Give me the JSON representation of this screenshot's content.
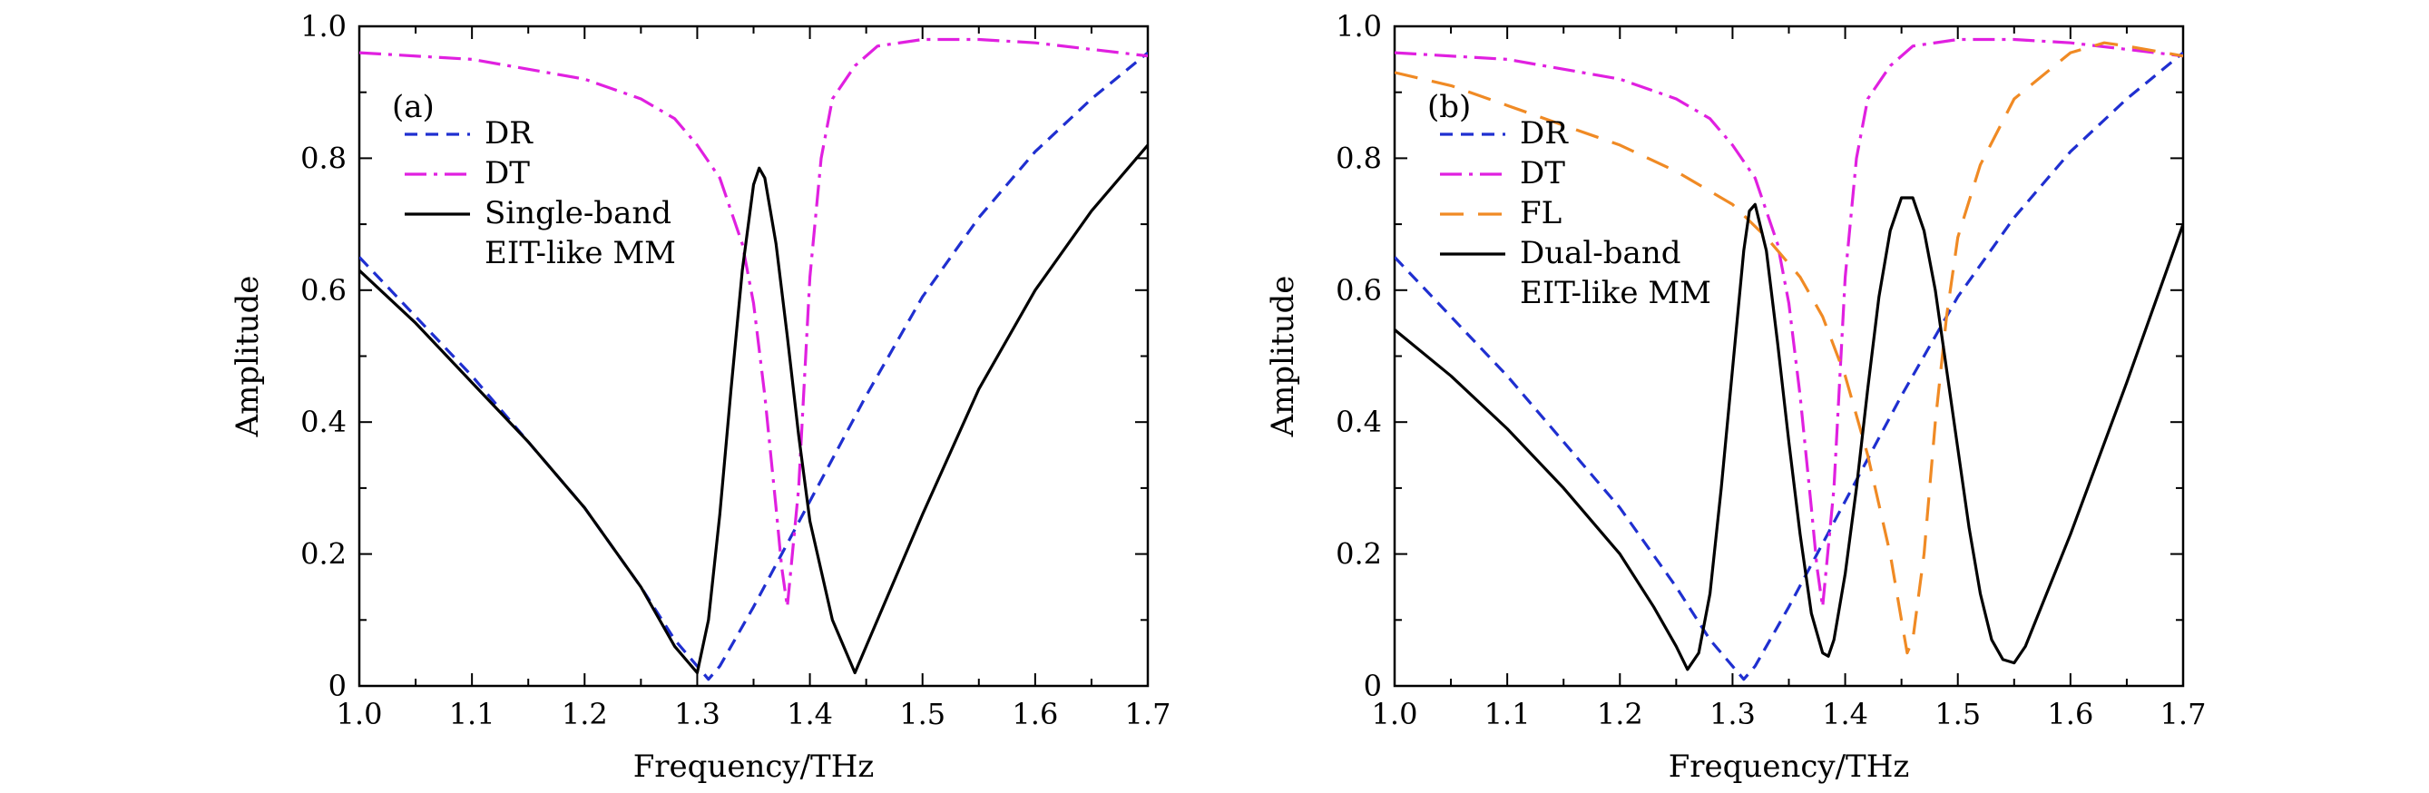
{
  "colors": {
    "DR": "#1f2fd0",
    "DT": "#e020e0",
    "FL": "#f08a24",
    "EIT": "#000000"
  },
  "chart_data": [
    {
      "type": "line",
      "panel_label": "(a)",
      "xlabel": "Frequency/THz",
      "ylabel": "Amplitude",
      "xlim": [
        1.0,
        1.7
      ],
      "ylim": [
        0,
        1.0
      ],
      "xticks": [
        1.0,
        1.1,
        1.2,
        1.3,
        1.4,
        1.5,
        1.6,
        1.7
      ],
      "xtick_labels": [
        "1.0",
        "1.1",
        "1.2",
        "1.3",
        "1.4",
        "1.5",
        "1.6",
        "1.7"
      ],
      "yticks": [
        0,
        0.2,
        0.4,
        0.6,
        0.8,
        1.0
      ],
      "ytick_labels": [
        "0",
        "0.2",
        "0.4",
        "0.6",
        "0.8",
        "1.0"
      ],
      "legend_position": "top-left",
      "series": [
        {
          "name": "DR",
          "style": "dashed",
          "color_key": "DR",
          "x": [
            1.0,
            1.05,
            1.1,
            1.15,
            1.2,
            1.25,
            1.28,
            1.3,
            1.31,
            1.32,
            1.35,
            1.4,
            1.45,
            1.5,
            1.55,
            1.6,
            1.65,
            1.7
          ],
          "y": [
            0.65,
            0.56,
            0.47,
            0.37,
            0.27,
            0.15,
            0.07,
            0.03,
            0.01,
            0.03,
            0.12,
            0.28,
            0.44,
            0.59,
            0.71,
            0.81,
            0.89,
            0.96
          ]
        },
        {
          "name": "DT",
          "style": "dash-dot",
          "color_key": "DT",
          "x": [
            1.0,
            1.1,
            1.2,
            1.25,
            1.28,
            1.3,
            1.32,
            1.34,
            1.35,
            1.36,
            1.37,
            1.375,
            1.38,
            1.39,
            1.4,
            1.41,
            1.42,
            1.44,
            1.46,
            1.5,
            1.55,
            1.6,
            1.65,
            1.7
          ],
          "y": [
            0.96,
            0.95,
            0.92,
            0.89,
            0.86,
            0.82,
            0.77,
            0.67,
            0.58,
            0.44,
            0.27,
            0.18,
            0.12,
            0.3,
            0.62,
            0.8,
            0.89,
            0.94,
            0.97,
            0.98,
            0.98,
            0.975,
            0.965,
            0.955
          ]
        },
        {
          "name": "Single-band\nEIT-like MM",
          "style": "solid",
          "color_key": "EIT",
          "x": [
            1.0,
            1.05,
            1.1,
            1.15,
            1.2,
            1.25,
            1.28,
            1.3,
            1.31,
            1.32,
            1.33,
            1.34,
            1.35,
            1.355,
            1.36,
            1.37,
            1.38,
            1.39,
            1.4,
            1.42,
            1.44,
            1.45,
            1.5,
            1.55,
            1.6,
            1.65,
            1.7
          ],
          "y": [
            0.63,
            0.55,
            0.46,
            0.37,
            0.27,
            0.15,
            0.06,
            0.02,
            0.1,
            0.26,
            0.45,
            0.63,
            0.76,
            0.785,
            0.77,
            0.67,
            0.53,
            0.38,
            0.25,
            0.1,
            0.02,
            0.06,
            0.26,
            0.45,
            0.6,
            0.72,
            0.82
          ]
        }
      ]
    },
    {
      "type": "line",
      "panel_label": "(b)",
      "xlabel": "Frequency/THz",
      "ylabel": "Amplitude",
      "xlim": [
        1.0,
        1.7
      ],
      "ylim": [
        0,
        1.0
      ],
      "xticks": [
        1.0,
        1.1,
        1.2,
        1.3,
        1.4,
        1.5,
        1.6,
        1.7
      ],
      "xtick_labels": [
        "1.0",
        "1.1",
        "1.2",
        "1.3",
        "1.4",
        "1.5",
        "1.6",
        "1.7"
      ],
      "yticks": [
        0,
        0.2,
        0.4,
        0.6,
        0.8,
        1.0
      ],
      "ytick_labels": [
        "0",
        "0.2",
        "0.4",
        "0.6",
        "0.8",
        "1.0"
      ],
      "legend_position": "top-left",
      "series": [
        {
          "name": "DR",
          "style": "dashed",
          "color_key": "DR",
          "x": [
            1.0,
            1.05,
            1.1,
            1.15,
            1.2,
            1.25,
            1.28,
            1.3,
            1.31,
            1.32,
            1.35,
            1.4,
            1.45,
            1.5,
            1.55,
            1.6,
            1.65,
            1.7
          ],
          "y": [
            0.65,
            0.56,
            0.47,
            0.37,
            0.27,
            0.15,
            0.07,
            0.03,
            0.01,
            0.03,
            0.12,
            0.28,
            0.44,
            0.59,
            0.71,
            0.81,
            0.89,
            0.96
          ]
        },
        {
          "name": "DT",
          "style": "dash-dot",
          "color_key": "DT",
          "x": [
            1.0,
            1.1,
            1.2,
            1.25,
            1.28,
            1.3,
            1.32,
            1.34,
            1.35,
            1.36,
            1.37,
            1.375,
            1.38,
            1.39,
            1.4,
            1.41,
            1.42,
            1.44,
            1.46,
            1.5,
            1.55,
            1.6,
            1.65,
            1.7
          ],
          "y": [
            0.96,
            0.95,
            0.92,
            0.89,
            0.86,
            0.82,
            0.77,
            0.67,
            0.58,
            0.44,
            0.27,
            0.18,
            0.12,
            0.3,
            0.62,
            0.8,
            0.89,
            0.94,
            0.97,
            0.98,
            0.98,
            0.975,
            0.965,
            0.955
          ]
        },
        {
          "name": "FL",
          "style": "long-dashed",
          "color_key": "FL",
          "x": [
            1.0,
            1.05,
            1.1,
            1.15,
            1.2,
            1.25,
            1.3,
            1.33,
            1.36,
            1.38,
            1.4,
            1.42,
            1.44,
            1.45,
            1.455,
            1.46,
            1.47,
            1.48,
            1.49,
            1.5,
            1.52,
            1.55,
            1.6,
            1.63,
            1.65,
            1.7
          ],
          "y": [
            0.93,
            0.91,
            0.88,
            0.85,
            0.82,
            0.78,
            0.73,
            0.68,
            0.62,
            0.56,
            0.47,
            0.35,
            0.2,
            0.1,
            0.05,
            0.07,
            0.2,
            0.4,
            0.56,
            0.68,
            0.79,
            0.89,
            0.96,
            0.975,
            0.97,
            0.955
          ]
        },
        {
          "name": "Dual-band\nEIT-like MM",
          "style": "solid",
          "color_key": "EIT",
          "x": [
            1.0,
            1.05,
            1.1,
            1.15,
            1.2,
            1.23,
            1.25,
            1.26,
            1.27,
            1.28,
            1.29,
            1.3,
            1.31,
            1.315,
            1.32,
            1.33,
            1.34,
            1.35,
            1.36,
            1.37,
            1.38,
            1.385,
            1.39,
            1.4,
            1.41,
            1.42,
            1.43,
            1.44,
            1.45,
            1.46,
            1.47,
            1.48,
            1.49,
            1.5,
            1.51,
            1.52,
            1.53,
            1.54,
            1.55,
            1.56,
            1.6,
            1.65,
            1.7
          ],
          "y": [
            0.54,
            0.47,
            0.39,
            0.3,
            0.2,
            0.12,
            0.06,
            0.025,
            0.05,
            0.14,
            0.3,
            0.48,
            0.66,
            0.72,
            0.73,
            0.66,
            0.52,
            0.37,
            0.23,
            0.11,
            0.05,
            0.045,
            0.07,
            0.17,
            0.3,
            0.45,
            0.59,
            0.69,
            0.74,
            0.74,
            0.69,
            0.6,
            0.48,
            0.36,
            0.24,
            0.14,
            0.07,
            0.04,
            0.035,
            0.06,
            0.23,
            0.46,
            0.7
          ]
        }
      ]
    }
  ]
}
